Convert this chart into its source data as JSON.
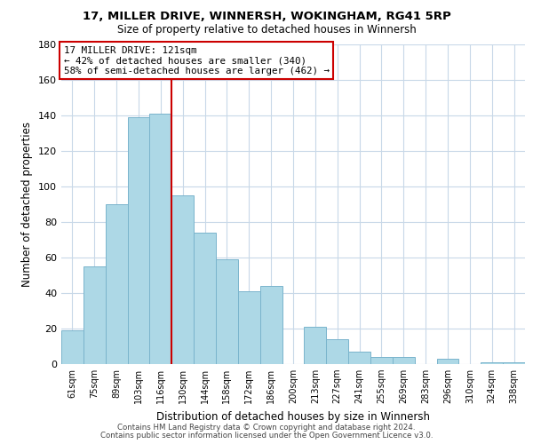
{
  "title1": "17, MILLER DRIVE, WINNERSH, WOKINGHAM, RG41 5RP",
  "title2": "Size of property relative to detached houses in Winnersh",
  "xlabel": "Distribution of detached houses by size in Winnersh",
  "ylabel": "Number of detached properties",
  "bar_labels": [
    "61sqm",
    "75sqm",
    "89sqm",
    "103sqm",
    "116sqm",
    "130sqm",
    "144sqm",
    "158sqm",
    "172sqm",
    "186sqm",
    "200sqm",
    "213sqm",
    "227sqm",
    "241sqm",
    "255sqm",
    "269sqm",
    "283sqm",
    "296sqm",
    "310sqm",
    "324sqm",
    "338sqm"
  ],
  "bar_heights": [
    19,
    55,
    90,
    139,
    141,
    95,
    74,
    59,
    41,
    44,
    0,
    21,
    14,
    7,
    4,
    4,
    0,
    3,
    0,
    1,
    1
  ],
  "bar_color": "#add8e6",
  "bar_edgecolor": "#7ab4cc",
  "vline_x": 4.5,
  "vline_color": "#cc0000",
  "annotation_line1": "17 MILLER DRIVE: 121sqm",
  "annotation_line2": "← 42% of detached houses are smaller (340)",
  "annotation_line3": "58% of semi-detached houses are larger (462) →",
  "annotation_box_edgecolor": "#cc0000",
  "footer1": "Contains HM Land Registry data © Crown copyright and database right 2024.",
  "footer2": "Contains public sector information licensed under the Open Government Licence v3.0.",
  "ylim": [
    0,
    180
  ],
  "yticks": [
    0,
    20,
    40,
    60,
    80,
    100,
    120,
    140,
    160,
    180
  ],
  "background_color": "#ffffff",
  "grid_color": "#c8d8e8"
}
